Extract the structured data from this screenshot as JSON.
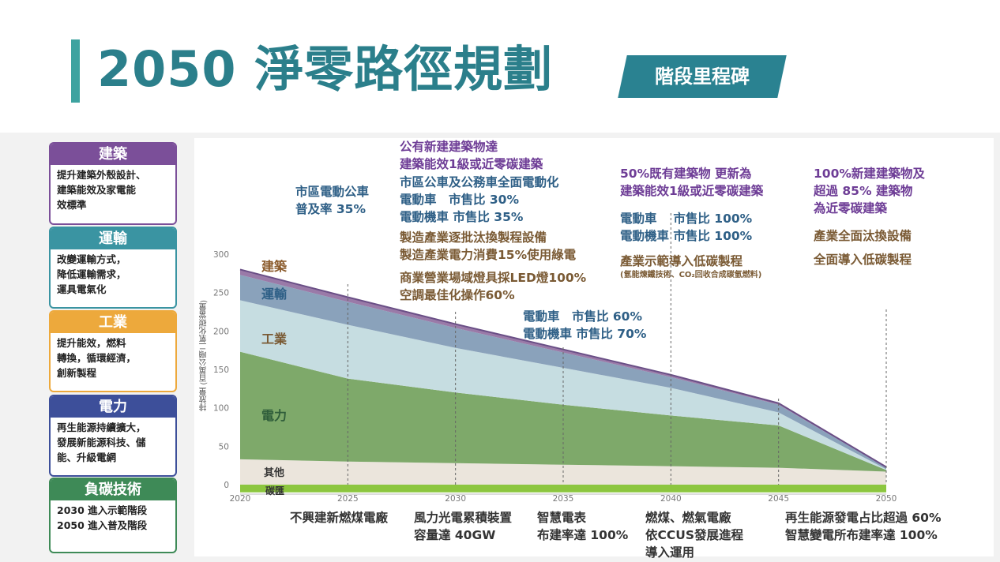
{
  "header": {
    "title": "2050 淨零路徑規劃",
    "badge": "階段里程碑"
  },
  "cards": [
    {
      "title": "建築",
      "color": "#7b4f99",
      "lines": [
        "提升建築外殼設計、",
        "建築能效及家電能",
        "效標準"
      ]
    },
    {
      "title": "運輸",
      "color": "#3a94a2",
      "lines": [
        "改變運輸方式，",
        "降低運輸需求，",
        "運具電氣化"
      ]
    },
    {
      "title": "工業",
      "color": "#eda93c",
      "lines": [
        "提升能效，燃料",
        "轉換，循環經濟，",
        "創新製程"
      ]
    },
    {
      "title": "電力",
      "color": "#3d4f9a",
      "lines": [
        "再生能源持續擴大，",
        "發展新能源科技、儲",
        "能、升級電網"
      ]
    },
    {
      "title": "負碳技術",
      "color": "#3e8a57",
      "lines": [
        "2030 進入示範階段",
        "2050 進入普及階段"
      ]
    }
  ],
  "annotations": {
    "y2025_top": [
      "市區電動公車",
      "普及率 35%"
    ],
    "y2030_purple": [
      "公有新建建築物達",
      "建築能效1級或近零碳建築"
    ],
    "y2030_blue": [
      "市區公車及公務車全面電動化",
      "電動車　市售比 30%",
      "電動機車 市售比 35%"
    ],
    "y2030_brown": [
      "製造產業逐批汰換製程設備",
      "製造產業電力消費15%使用綠電"
    ],
    "y2030_brown2": [
      "商業營業場域燈具採LED燈100%",
      "空調最佳化操作60%"
    ],
    "y2035_blue": [
      "電動車　市售比 60%",
      "電動機車 市售比 70%"
    ],
    "y2040_purple": [
      "50%既有建築物 更新為",
      "建築能效1級或近零碳建築"
    ],
    "y2040_blue": [
      "電動車　 市售比 100%",
      "電動機車 市售比 100%"
    ],
    "y2040_brown": "產業示範導入低碳製程",
    "y2040_brown_note": "(氫能煉鐵技術、CO₂回收合成碳氫燃料)",
    "y2050_purple": [
      "100%新建建築物及",
      "超過 85% 建築物",
      "為近零碳建築"
    ],
    "y2050_brown": [
      "產業全面汰換設備",
      "全面導入低碳製程"
    ]
  },
  "bottom_notes": {
    "n2025": "不興建新燃煤電廠",
    "n2030": [
      "風力光電累積裝置",
      "容量達 40GW"
    ],
    "n2035": [
      "智慧電表",
      "布建率達 100%"
    ],
    "n2040": [
      "燃煤、燃氣電廠",
      "依CCUS發展進程",
      "導入運用"
    ],
    "n2050": [
      "再生能源發電占比超過 60%",
      "智慧變電所布建率達 100%"
    ]
  },
  "chart_data": {
    "type": "area",
    "stacked": true,
    "x": [
      2020,
      2025,
      2030,
      2035,
      2040,
      2045,
      2050
    ],
    "ylabel": "排放量 (百萬公噸二氧化碳當量)",
    "ylim": [
      0,
      300
    ],
    "yticks": [
      0,
      50,
      100,
      150,
      200,
      250,
      300
    ],
    "series": [
      {
        "name": "碳匯",
        "color": "#8cc63f",
        "values": [
          -10,
          -10,
          -10,
          -10,
          -10,
          -10,
          -10
        ]
      },
      {
        "name": "其他",
        "color": "#ebe5dc",
        "values": [
          33,
          30,
          28,
          26,
          24,
          22,
          17
        ]
      },
      {
        "name": "電力",
        "color": "#7ea96a",
        "values": [
          140,
          108,
          92,
          78,
          66,
          55,
          2
        ]
      },
      {
        "name": "工業",
        "color": "#c6dde1",
        "values": [
          67,
          70,
          58,
          48,
          36,
          17,
          1
        ]
      },
      {
        "name": "運輸",
        "color": "#8aa2bb",
        "values": [
          33,
          30,
          26,
          20,
          14,
          10,
          2
        ]
      },
      {
        "name": "建築",
        "color": "#9a7aa8",
        "values": [
          7,
          6,
          5,
          4,
          3,
          2,
          1
        ]
      }
    ],
    "series_labels": [
      "建築",
      "運輸",
      "工業",
      "電力",
      "其他",
      "碳匯"
    ],
    "series_label_colors": [
      "#8a5a2b",
      "#2e5f86",
      "#7a5a34",
      "#2f5d3a",
      "#333333",
      "#333333"
    ],
    "milestones": [
      2025,
      2030,
      2035,
      2040,
      2045,
      2050
    ]
  }
}
